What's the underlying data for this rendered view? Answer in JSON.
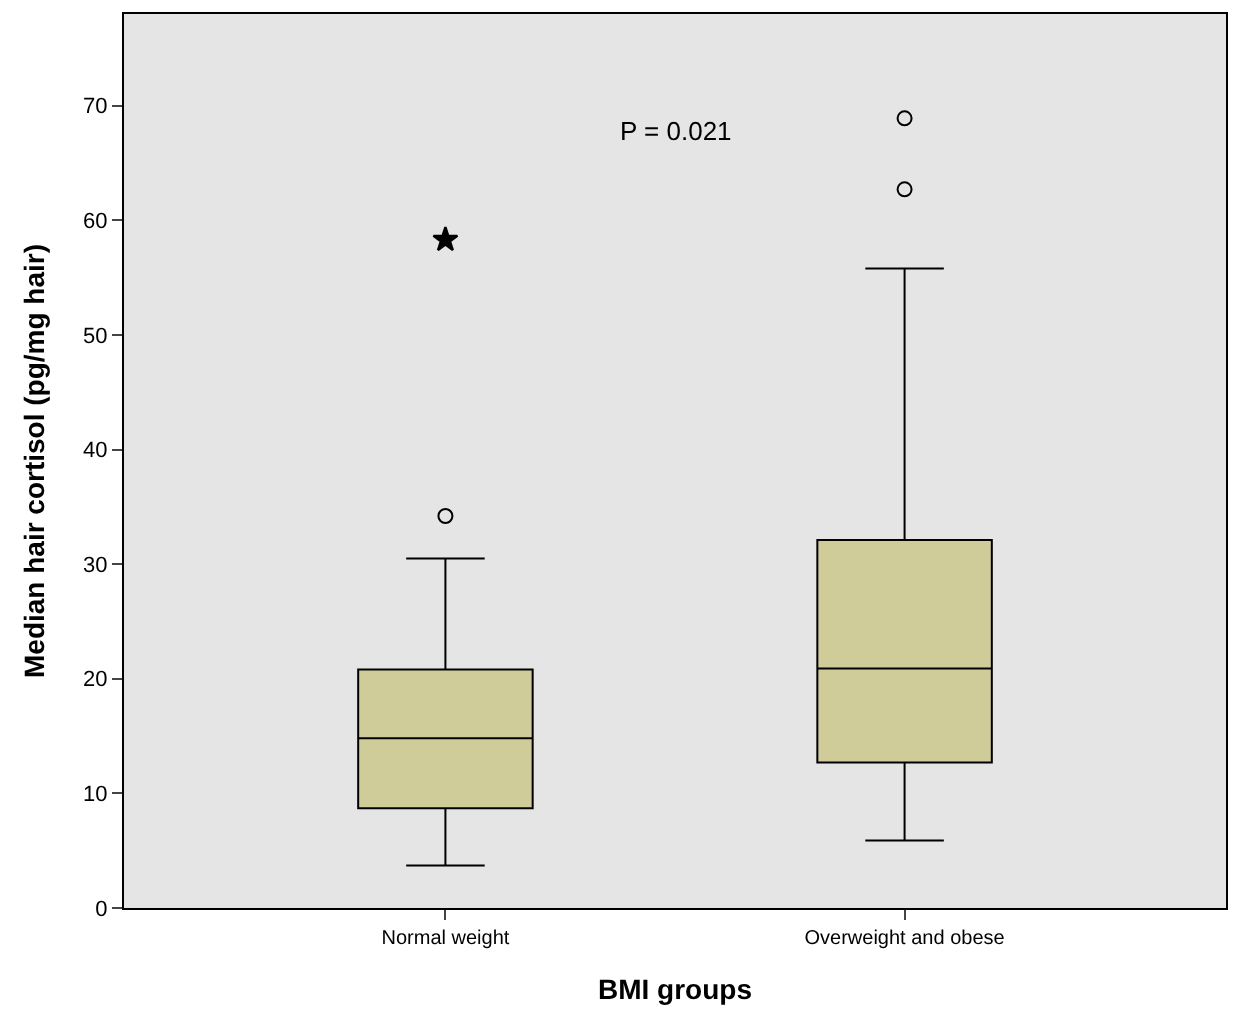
{
  "chart_data": {
    "type": "box",
    "xlabel": "BMI groups",
    "ylabel": "Median hair cortisol (pg/mg hair)",
    "categories": [
      "Normal weight",
      "Overweight and obese"
    ],
    "color": "#cfcc9a",
    "boxes": [
      {
        "low": 3.7,
        "q1": 8.7,
        "median": 14.8,
        "q3": 20.8,
        "high": 30.5,
        "outliers": [
          34.2
        ]
      },
      {
        "low": 5.9,
        "q1": 12.7,
        "median": 20.9,
        "q3": 32.1,
        "high": 55.8,
        "outliers": [
          62.7,
          68.9
        ]
      }
    ],
    "series": [
      {
        "type": "scatter",
        "marker": "star",
        "color": "#000000",
        "x": [
          "Normal weight"
        ],
        "values": [
          58.3
        ]
      }
    ],
    "annotations": [
      "P = 0.021"
    ],
    "ylim": [
      0,
      78
    ],
    "yticks": [
      0,
      10,
      20,
      30,
      40,
      50,
      60,
      70
    ],
    "grid": false
  }
}
